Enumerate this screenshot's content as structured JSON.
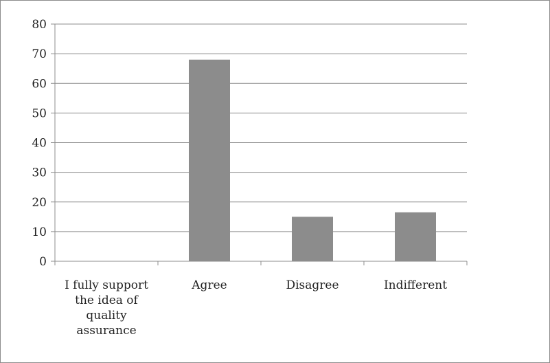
{
  "chart_data": {
    "type": "bar",
    "categories": [
      "I fully support the idea of quality assurance",
      "Agree",
      "Disagree",
      "Indifferent"
    ],
    "category_label_lines": [
      [
        "I fully support",
        "the idea of",
        "quality",
        "assurance"
      ],
      [
        "Agree"
      ],
      [
        "Disagree"
      ],
      [
        "Indifferent"
      ]
    ],
    "values": [
      0,
      68,
      15,
      16.5
    ],
    "ylim": [
      0,
      80
    ],
    "yticks": [
      0,
      10,
      20,
      30,
      40,
      50,
      60,
      70,
      80
    ],
    "ytick_labels": [
      "0",
      "10",
      "20",
      "30",
      "40",
      "50",
      "60",
      "70",
      "80"
    ],
    "grid": true,
    "legend": "none",
    "bar_color": "#8c8c8c",
    "grid_color": "#8c8c8c",
    "axis_color": "#8c8c8c",
    "text_color": "#222222"
  }
}
